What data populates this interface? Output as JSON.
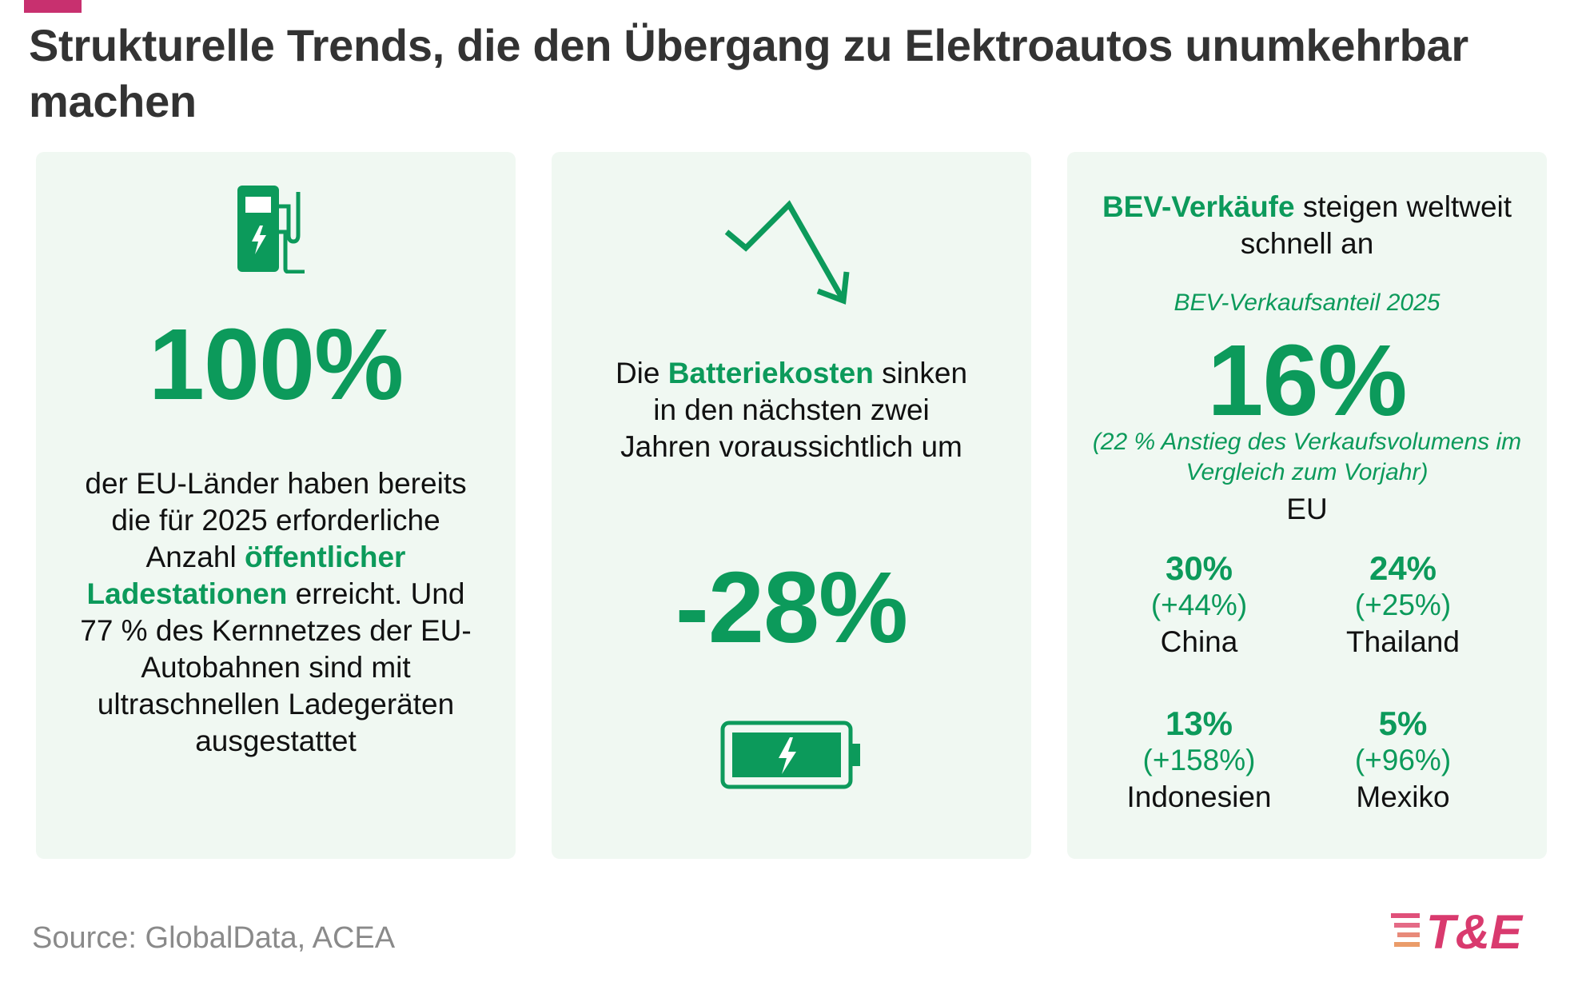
{
  "header": {
    "title": "Strukturelle Trends, die den Übergang zu Elektroautos unumkehrbar machen"
  },
  "card_charging": {
    "icon": "fuel-pump-icon",
    "big_value": "100%",
    "text_part1": "der EU-Länder haben bereits die für 2025 erforderliche Anzahl ",
    "text_highlight": "öffentlicher Ladestationen",
    "text_part2": " erreicht. Und 77 % des Kernnetzes der EU-Autobahnen sind mit ultraschnellen Ladegeräten ausgestattet"
  },
  "card_battery": {
    "icon": "trend-down-arrow-icon",
    "text_part1": "Die ",
    "text_highlight": "Batteriekosten",
    "text_part2": " sinken in den nächsten zwei Jahren voraussichtlich um",
    "big_value": "-28%",
    "battery_icon": "battery-charging-icon"
  },
  "card_sales": {
    "head_highlight": "BEV-Verkäufe",
    "head_rest": " steigen weltweit schnell an",
    "subtitle": "BEV-Verkaufsanteil 2025",
    "big_value": "16%",
    "note": "(22 % Anstieg des Verkaufsvolumens im Vergleich zum Vorjahr)",
    "region": "EU",
    "countries": [
      {
        "share": "30%",
        "change": "(+44%)",
        "name": "China"
      },
      {
        "share": "24%",
        "change": "(+25%)",
        "name": "Thailand"
      },
      {
        "share": "13%",
        "change": "(+158%)",
        "name": "Indonesien"
      },
      {
        "share": "5%",
        "change": "(+96%)",
        "name": "Mexiko"
      }
    ]
  },
  "footer": {
    "source": "Source: GlobalData, ACEA",
    "logo_text": "T&E"
  },
  "colors": {
    "accent_green": "#0c9a5b",
    "card_background": "#f0f8f2",
    "brand_pink": "#c8306f"
  }
}
